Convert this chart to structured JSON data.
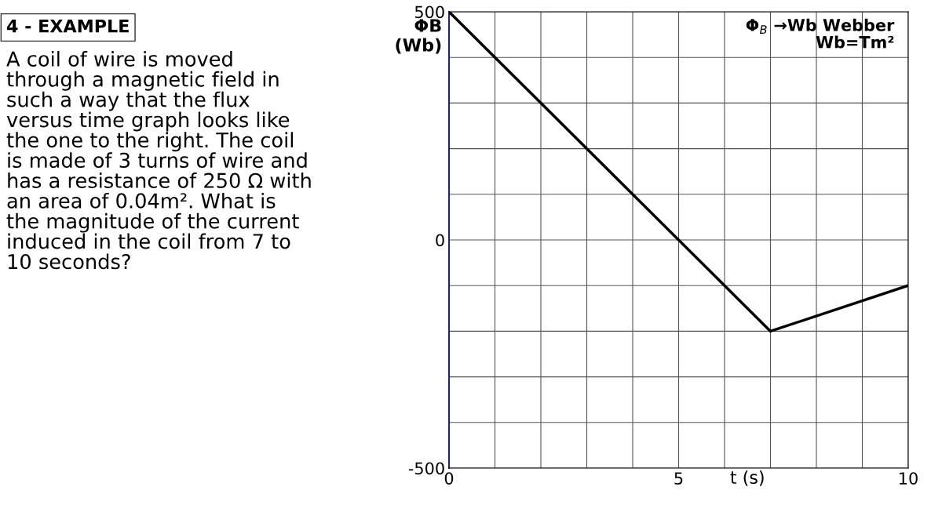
{
  "chart_data": {
    "type": "line",
    "title": "4 - EXAMPLE",
    "xlabel": "t (s)",
    "ylabel": "ΦB\n(Wb)",
    "x": [
      0,
      7,
      10
    ],
    "values": [
      500,
      -200,
      -100
    ],
    "color": "#000000",
    "xlim": [
      0,
      10
    ],
    "ylim": [
      -500,
      500
    ],
    "xticks": [
      0,
      {
        "value": 1,
        "label": null
      },
      {
        "value": 2,
        "label": null
      },
      {
        "value": 3,
        "label": null
      },
      {
        "value": 4,
        "label": null
      },
      5,
      {
        "value": 6,
        "label": null
      },
      {
        "value": 7,
        "label": null
      },
      {
        "value": 8,
        "label": null
      },
      {
        "value": 9,
        "label": null
      },
      10
    ],
    "yticks": [
      -500,
      {
        "value": -400,
        "label": null
      },
      {
        "value": -300,
        "label": null
      },
      {
        "value": -200,
        "label": null
      },
      {
        "value": -100,
        "label": null
      },
      0,
      {
        "value": 100,
        "label": null
      },
      {
        "value": 200,
        "label": null
      },
      {
        "value": 300,
        "label": null
      },
      {
        "value": 400,
        "label": null
      },
      500
    ],
    "grid": true,
    "marker": "none",
    "line_style": "solid",
    "annotations": [
      "A coil of wire is moved\nthrough a magnetic field in\nsuch a way that the flux\nversus time graph looks like\nthe one to the right. The coil\nis made of 3 turns of wire and\nhas a resistance of 250 Ω with\nan area of 0.04m². What is\nthe magnitude of the current\ninduced in the coil from 7 to\n10 seconds?",
      "Φ$_{B}$ →Wb Webber\nWb=Tm²"
    ]
  }
}
